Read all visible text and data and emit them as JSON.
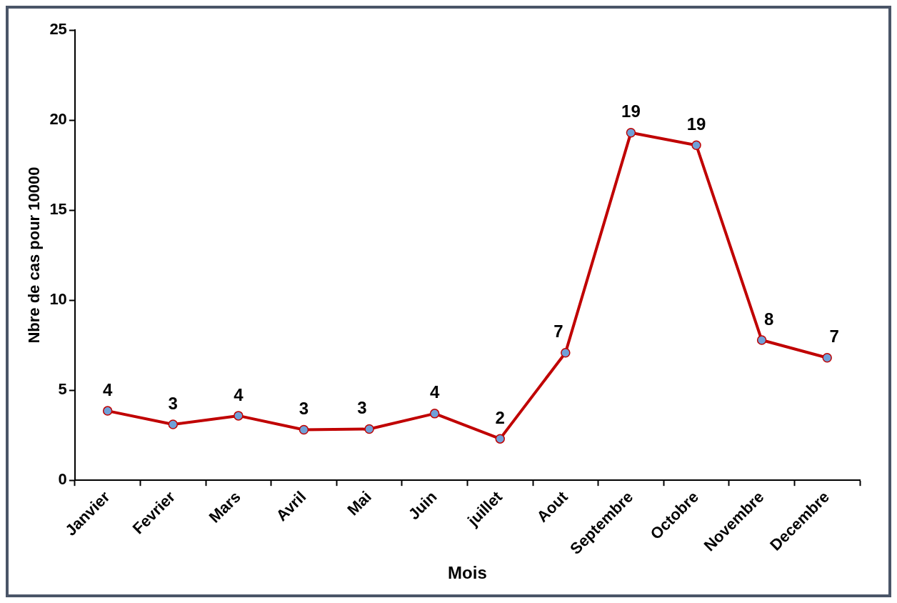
{
  "chart_data": {
    "type": "line",
    "xlabel": "Mois",
    "ylabel": "Nbre de cas pour 10000",
    "categories": [
      "Janvier",
      "Fevrier",
      "Mars",
      "Avril",
      "Mai",
      "Juin",
      "juillet",
      "Aout",
      "Septembre",
      "Octobre",
      "Novembre",
      "Decembre"
    ],
    "series": [
      {
        "color": "#c00000",
        "values": [
          3.85,
          3.1,
          3.58,
          2.8,
          2.84,
          3.7,
          2.3,
          7.08,
          19.3,
          18.6,
          7.78,
          6.8
        ],
        "value_labels": [
          "4",
          "3",
          "4",
          "3",
          "3",
          "4",
          "2",
          "7",
          "19",
          "19",
          "8",
          "7"
        ]
      }
    ],
    "ylim": [
      0,
      25
    ],
    "yticks": [
      0,
      5,
      10,
      15,
      20,
      25
    ],
    "grid": false,
    "legend": false,
    "marker": "circle",
    "line_style": "solid"
  }
}
